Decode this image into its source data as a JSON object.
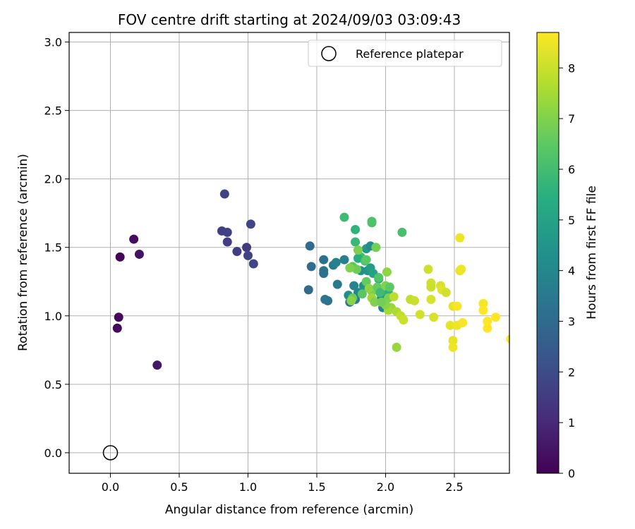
{
  "chart_data": {
    "type": "scatter",
    "title": "FOV centre drift starting at 2024/09/03 03:09:43",
    "xlabel": "Angular distance from reference (arcmin)",
    "ylabel": "Rotation from reference (arcmin)",
    "xlim": [
      -0.3,
      2.9
    ],
    "ylim": [
      -0.15,
      3.07
    ],
    "x_ticks": [
      "0.0",
      "0.5",
      "1.0",
      "1.5",
      "2.0",
      "2.5"
    ],
    "y_ticks": [
      "0.0",
      "0.5",
      "1.0",
      "1.5",
      "2.0",
      "2.5",
      "3.0"
    ],
    "grid": true,
    "legend": {
      "position": "top-right",
      "entries": [
        "Reference platepar"
      ]
    },
    "colorbar": {
      "label": "Hours from first FF file",
      "range": [
        0,
        8.7
      ],
      "ticks": [
        "0",
        "1",
        "2",
        "3",
        "4",
        "5",
        "6",
        "7",
        "8"
      ],
      "colormap": "viridis"
    },
    "reference_point": {
      "x": 0.0,
      "y": 0.0
    },
    "series": [
      {
        "points": [
          [
            0.17,
            1.56,
            0.3
          ],
          [
            0.07,
            1.43,
            0.1
          ],
          [
            0.21,
            1.45,
            0.4
          ],
          [
            0.06,
            0.99,
            0.2
          ],
          [
            0.05,
            0.91,
            0.2
          ],
          [
            0.34,
            0.64,
            0.5
          ],
          [
            0.83,
            1.89,
            1.7
          ],
          [
            0.81,
            1.62,
            1.6
          ],
          [
            0.85,
            1.61,
            1.7
          ],
          [
            0.85,
            1.54,
            1.6
          ],
          [
            0.92,
            1.47,
            1.6
          ],
          [
            0.99,
            1.5,
            1.5
          ],
          [
            1.02,
            1.67,
            1.8
          ],
          [
            1.0,
            1.44,
            1.7
          ],
          [
            1.04,
            1.38,
            1.8
          ],
          [
            1.45,
            1.51,
            3.0
          ],
          [
            1.55,
            1.41,
            3.2
          ],
          [
            1.46,
            1.36,
            3.1
          ],
          [
            1.55,
            1.33,
            3.3
          ],
          [
            1.55,
            1.31,
            3.2
          ],
          [
            1.44,
            1.19,
            3.0
          ],
          [
            1.56,
            1.12,
            3.4
          ],
          [
            1.58,
            1.11,
            3.3
          ],
          [
            1.62,
            1.37,
            3.6
          ],
          [
            1.64,
            1.39,
            3.8
          ],
          [
            1.65,
            1.23,
            3.5
          ],
          [
            1.7,
            1.41,
            3.8
          ],
          [
            1.74,
            1.1,
            3.4
          ],
          [
            1.73,
            1.15,
            4.2
          ],
          [
            1.77,
            1.22,
            3.9
          ],
          [
            1.78,
            1.12,
            3.7
          ],
          [
            1.8,
            1.17,
            4.0
          ],
          [
            1.82,
            1.33,
            4.3
          ],
          [
            1.84,
            1.22,
            4.4
          ],
          [
            1.86,
            1.49,
            4.7
          ],
          [
            1.89,
            1.51,
            4.2
          ],
          [
            1.87,
            1.33,
            4.5
          ],
          [
            1.89,
            1.35,
            4.8
          ],
          [
            1.91,
            1.31,
            5.0
          ],
          [
            1.93,
            1.19,
            4.6
          ],
          [
            1.95,
            1.27,
            5.2
          ],
          [
            1.97,
            1.13,
            4.4
          ],
          [
            1.98,
            1.06,
            3.8
          ],
          [
            2.02,
            1.17,
            5.5
          ],
          [
            1.99,
            1.1,
            3.9
          ],
          [
            1.7,
            1.72,
            5.9
          ],
          [
            1.78,
            1.63,
            5.6
          ],
          [
            1.78,
            1.54,
            5.8
          ],
          [
            1.9,
            1.68,
            6.1
          ],
          [
            1.9,
            1.69,
            6.2
          ],
          [
            1.82,
            1.43,
            6.0
          ],
          [
            1.8,
            1.42,
            5.4
          ],
          [
            1.85,
            1.4,
            6.2
          ],
          [
            1.86,
            1.41,
            6.5
          ],
          [
            1.8,
            1.48,
            6.9
          ],
          [
            1.93,
            1.5,
            6.8
          ],
          [
            1.76,
            1.36,
            6.4
          ],
          [
            1.79,
            1.34,
            6.7
          ],
          [
            1.74,
            1.35,
            7.0
          ],
          [
            1.95,
            1.28,
            6.3
          ],
          [
            1.86,
            1.25,
            6.6
          ],
          [
            1.9,
            1.18,
            6.9
          ],
          [
            1.88,
            1.2,
            7.2
          ],
          [
            1.83,
            1.16,
            6.4
          ],
          [
            1.76,
            1.13,
            6.7
          ],
          [
            1.75,
            1.11,
            7.1
          ],
          [
            1.9,
            1.13,
            7.4
          ],
          [
            1.92,
            1.1,
            7.0
          ],
          [
            1.94,
            1.21,
            6.6
          ],
          [
            1.96,
            1.17,
            5.9
          ],
          [
            2.01,
            1.32,
            7.2
          ],
          [
            2.0,
            1.22,
            7.0
          ],
          [
            2.03,
            1.21,
            6.5
          ],
          [
            2.02,
            1.13,
            6.9
          ],
          [
            2.04,
            1.06,
            7.3
          ],
          [
            2.02,
            1.04,
            7.5
          ],
          [
            2.08,
            1.03,
            7.6
          ],
          [
            2.06,
            1.14,
            7.8
          ],
          [
            2.11,
            1.0,
            7.9
          ],
          [
            2.13,
            0.97,
            8.0
          ],
          [
            2.12,
            1.61,
            6.1
          ],
          [
            2.08,
            0.77,
            7.3
          ],
          [
            2.0,
            1.08,
            7.1
          ],
          [
            1.97,
            1.1,
            6.8
          ],
          [
            2.18,
            1.12,
            7.9
          ],
          [
            2.21,
            1.11,
            8.0
          ],
          [
            2.25,
            1.01,
            8.1
          ],
          [
            2.31,
            1.34,
            8.0
          ],
          [
            2.33,
            1.24,
            8.1
          ],
          [
            2.33,
            1.21,
            8.0
          ],
          [
            2.33,
            1.12,
            8.2
          ],
          [
            2.35,
            0.99,
            8.2
          ],
          [
            2.4,
            1.22,
            8.2
          ],
          [
            2.41,
            1.19,
            8.3
          ],
          [
            2.44,
            1.17,
            8.1
          ],
          [
            2.47,
            0.93,
            8.4
          ],
          [
            2.49,
            1.07,
            8.4
          ],
          [
            2.49,
            0.82,
            8.4
          ],
          [
            2.49,
            0.77,
            8.5
          ],
          [
            2.52,
            0.93,
            8.5
          ],
          [
            2.52,
            1.07,
            8.6
          ],
          [
            2.54,
            1.57,
            8.5
          ],
          [
            2.54,
            1.33,
            8.4
          ],
          [
            2.55,
            1.34,
            8.5
          ],
          [
            2.56,
            0.95,
            8.6
          ],
          [
            2.71,
            1.09,
            8.6
          ],
          [
            2.71,
            1.04,
            8.7
          ],
          [
            2.74,
            0.96,
            8.7
          ],
          [
            2.74,
            0.91,
            8.7
          ],
          [
            2.8,
            0.99,
            8.7
          ],
          [
            2.91,
            0.83,
            8.7
          ]
        ]
      }
    ]
  }
}
